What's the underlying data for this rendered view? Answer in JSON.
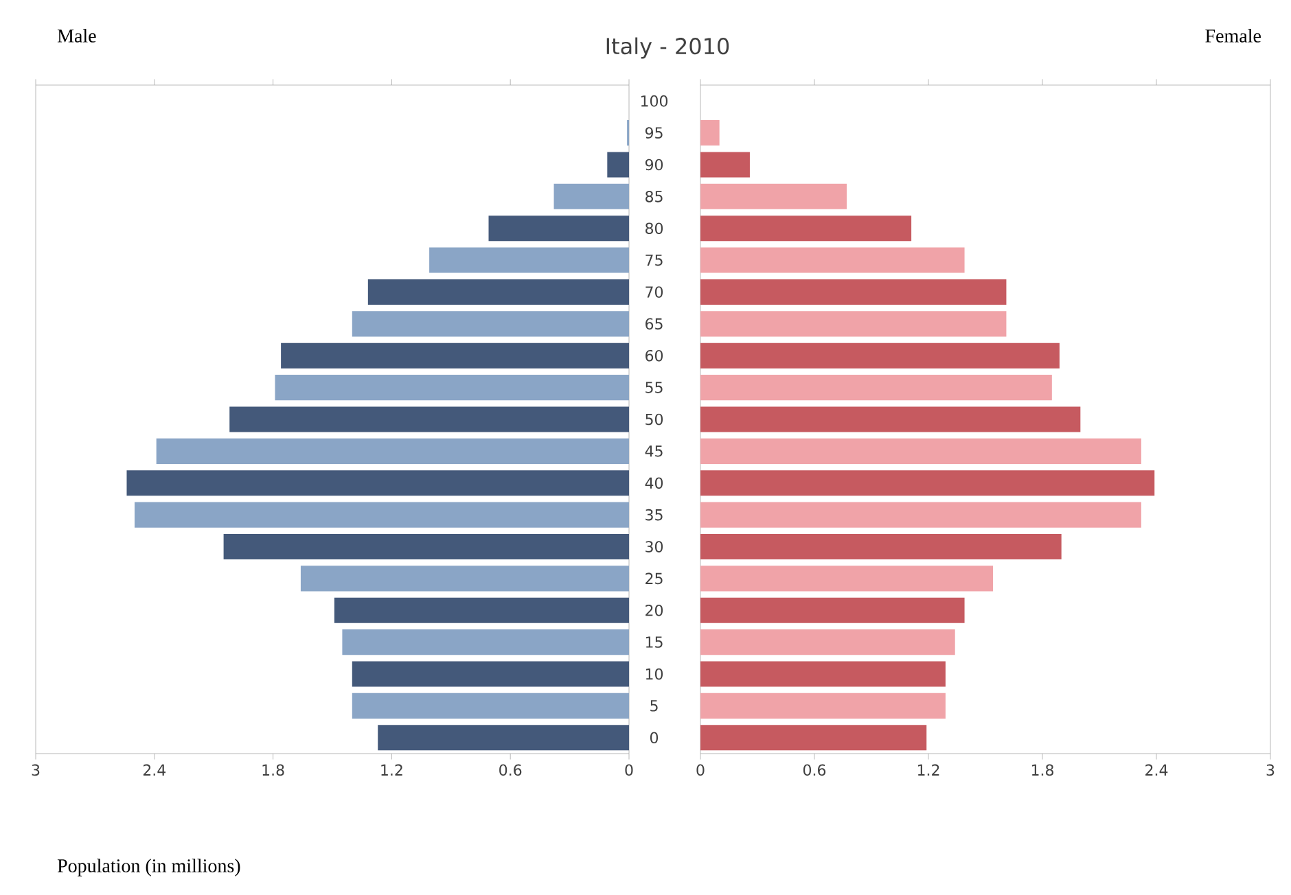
{
  "chart_data": [
    {
      "type": "bar",
      "orientation": "horizontal",
      "title": "Italy - 2010",
      "xlabel": "Population (in millions)",
      "annotations": [
        "Male"
      ],
      "categories": [
        "100",
        "95",
        "90",
        "85",
        "80",
        "75",
        "70",
        "65",
        "60",
        "55",
        "50",
        "45",
        "40",
        "35",
        "30",
        "25",
        "20",
        "15",
        "10",
        "5",
        "0"
      ],
      "values": [
        0,
        0.01,
        0.11,
        0.38,
        0.71,
        1.01,
        1.32,
        1.4,
        1.76,
        1.79,
        2.02,
        2.39,
        2.54,
        2.5,
        2.05,
        1.66,
        1.49,
        1.45,
        1.4,
        1.4,
        1.27
      ],
      "colors": [
        "#8aa5c6",
        "#8aa5c6",
        "#44597a",
        "#8aa5c6",
        "#44597a",
        "#8aa5c6",
        "#44597a",
        "#8aa5c6",
        "#44597a",
        "#8aa5c6",
        "#44597a",
        "#8aa5c6",
        "#44597a",
        "#8aa5c6",
        "#44597a",
        "#8aa5c6",
        "#44597a",
        "#8aa5c6",
        "#44597a",
        "#8aa5c6",
        "#44597a"
      ],
      "xlim": [
        3,
        0
      ],
      "xticks": [
        3,
        2.4,
        1.8,
        1.2,
        0.6,
        0
      ]
    },
    {
      "type": "bar",
      "orientation": "horizontal",
      "annotations": [
        "Female"
      ],
      "tick_labels": "x",
      "categories": [
        "100",
        "95",
        "90",
        "85",
        "80",
        "75",
        "70",
        "65",
        "60",
        "55",
        "50",
        "45",
        "40",
        "35",
        "30",
        "25",
        "20",
        "15",
        "10",
        "5",
        "0"
      ],
      "values": [
        0,
        0.1,
        0.26,
        0.77,
        1.11,
        1.39,
        1.61,
        1.61,
        1.89,
        1.85,
        2.0,
        2.32,
        2.39,
        2.32,
        1.9,
        1.54,
        1.39,
        1.34,
        1.29,
        1.29,
        1.19
      ],
      "colors": [
        "#f0a3a8",
        "#f0a3a8",
        "#c65a60",
        "#f0a3a8",
        "#c65a60",
        "#f0a3a8",
        "#c65a60",
        "#f0a3a8",
        "#c65a60",
        "#f0a3a8",
        "#c65a60",
        "#f0a3a8",
        "#c65a60",
        "#f0a3a8",
        "#c65a60",
        "#f0a3a8",
        "#c65a60",
        "#f0a3a8",
        "#c65a60",
        "#f0a3a8",
        "#c65a60"
      ],
      "xlim": [
        0,
        3
      ],
      "xticks": [
        0,
        0.6,
        1.2,
        1.8,
        2.4,
        3
      ]
    }
  ]
}
